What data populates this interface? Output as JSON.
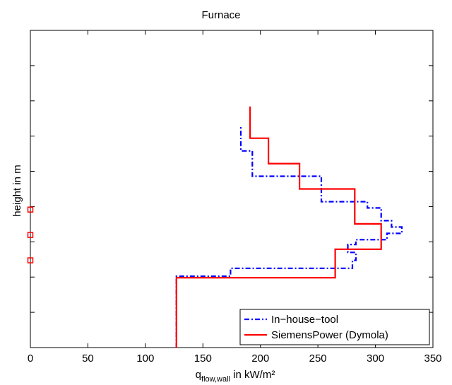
{
  "chart_data": {
    "type": "line",
    "title": "Furnace",
    "xlabel": {
      "main": "q",
      "sub": "flow,wall",
      "rest": " in kW/m²"
    },
    "ylabel": "height in m",
    "xlim": [
      0,
      350
    ],
    "ylim": [
      0,
      10
    ],
    "xticks": [
      "0",
      "50",
      "100",
      "150",
      "200",
      "250",
      "300",
      "350"
    ],
    "yticks_count": 9,
    "legend_position": "bottom-right",
    "series": [
      {
        "name": "In−house−tool",
        "color": "#0000ff",
        "style": "dash-dot",
        "steps": [
          [
            127,
            0
          ],
          [
            127,
            2.25
          ],
          [
            174,
            2.25
          ],
          [
            174,
            2.5
          ],
          [
            280,
            2.5
          ],
          [
            280,
            2.75
          ],
          [
            283,
            2.75
          ],
          [
            283,
            3.0
          ],
          [
            276,
            3.0
          ],
          [
            276,
            3.25
          ],
          [
            283,
            3.25
          ],
          [
            283,
            3.4
          ],
          [
            310,
            3.4
          ],
          [
            310,
            3.6
          ],
          [
            323,
            3.6
          ],
          [
            323,
            3.8
          ],
          [
            314,
            3.8
          ],
          [
            314,
            4.0
          ],
          [
            305,
            4.0
          ],
          [
            305,
            4.4
          ],
          [
            293,
            4.4
          ],
          [
            293,
            4.6
          ],
          [
            253,
            4.6
          ],
          [
            253,
            5.4
          ],
          [
            193,
            5.4
          ],
          [
            193,
            6.2
          ],
          [
            183,
            6.2
          ],
          [
            183,
            7.0
          ]
        ]
      },
      {
        "name": "SiemensPower (Dymola)",
        "color": "#ff0000",
        "style": "solid",
        "steps": [
          [
            127,
            0
          ],
          [
            127,
            2.2
          ],
          [
            265,
            2.2
          ],
          [
            265,
            3.1
          ],
          [
            305,
            3.1
          ],
          [
            305,
            3.9
          ],
          [
            282,
            3.9
          ],
          [
            282,
            5.0
          ],
          [
            234,
            5.0
          ],
          [
            234,
            5.8
          ],
          [
            207,
            5.8
          ],
          [
            207,
            6.6
          ],
          [
            191,
            6.6
          ],
          [
            191,
            7.6
          ]
        ]
      }
    ],
    "markers": {
      "color": "#ff0000",
      "shape": "square",
      "points": [
        [
          0,
          2.75
        ],
        [
          0,
          3.55
        ],
        [
          0,
          4.35
        ]
      ]
    }
  }
}
